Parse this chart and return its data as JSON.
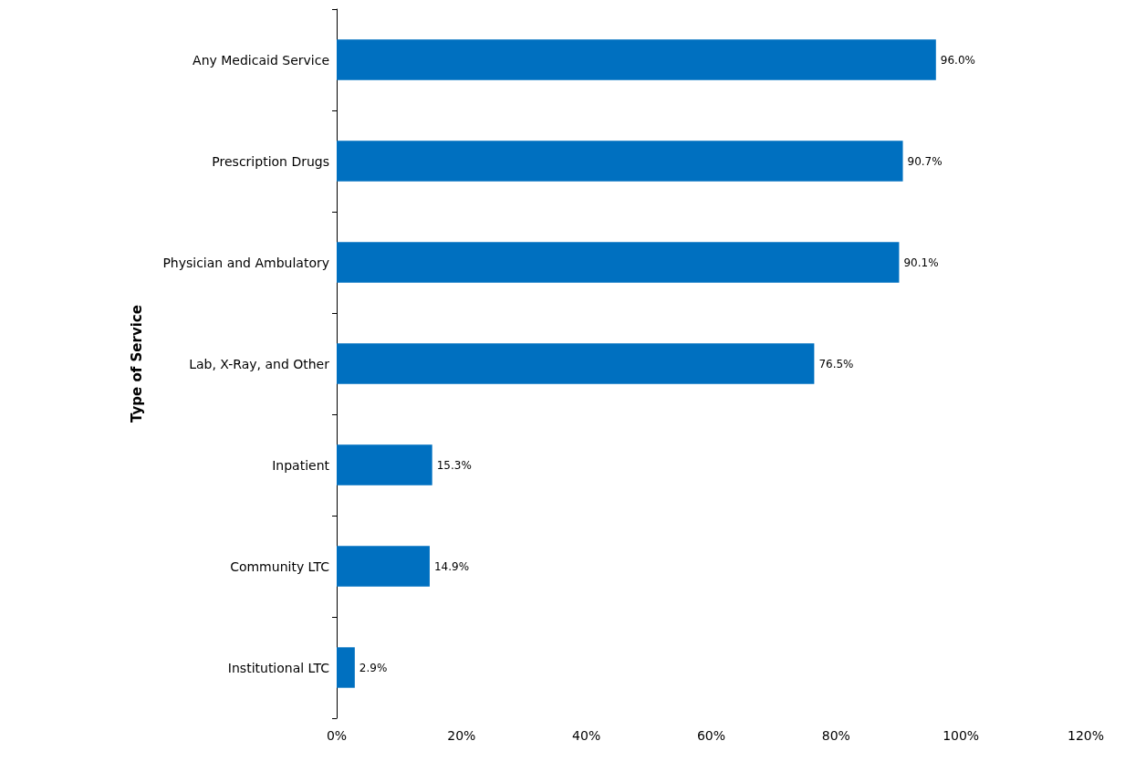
{
  "chart_data": {
    "type": "bar",
    "orientation": "horizontal",
    "ylabel": "Type of Service",
    "categories": [
      "Any Medicaid Service",
      "Prescription Drugs",
      "Physician and Ambulatory",
      "Lab, X-Ray, and Other",
      "Inpatient",
      "Community LTC",
      "Institutional LTC"
    ],
    "values": [
      96.0,
      90.7,
      90.1,
      76.5,
      15.3,
      14.9,
      2.9
    ],
    "value_labels": [
      "96.0%",
      "90.7%",
      "90.1%",
      "76.5%",
      "15.3%",
      "14.9%",
      "2.9%"
    ],
    "color": "#0070c0",
    "xlim": [
      0,
      120
    ],
    "xticks": [
      {
        "value": 0,
        "label": "0%"
      },
      {
        "value": 20,
        "label": "20%"
      },
      {
        "value": 40,
        "label": "40%"
      },
      {
        "value": 60,
        "label": "60%"
      },
      {
        "value": 80,
        "label": "80%"
      },
      {
        "value": 100,
        "label": "100%"
      },
      {
        "value": 120,
        "label": "120%"
      }
    ],
    "grid": false
  }
}
